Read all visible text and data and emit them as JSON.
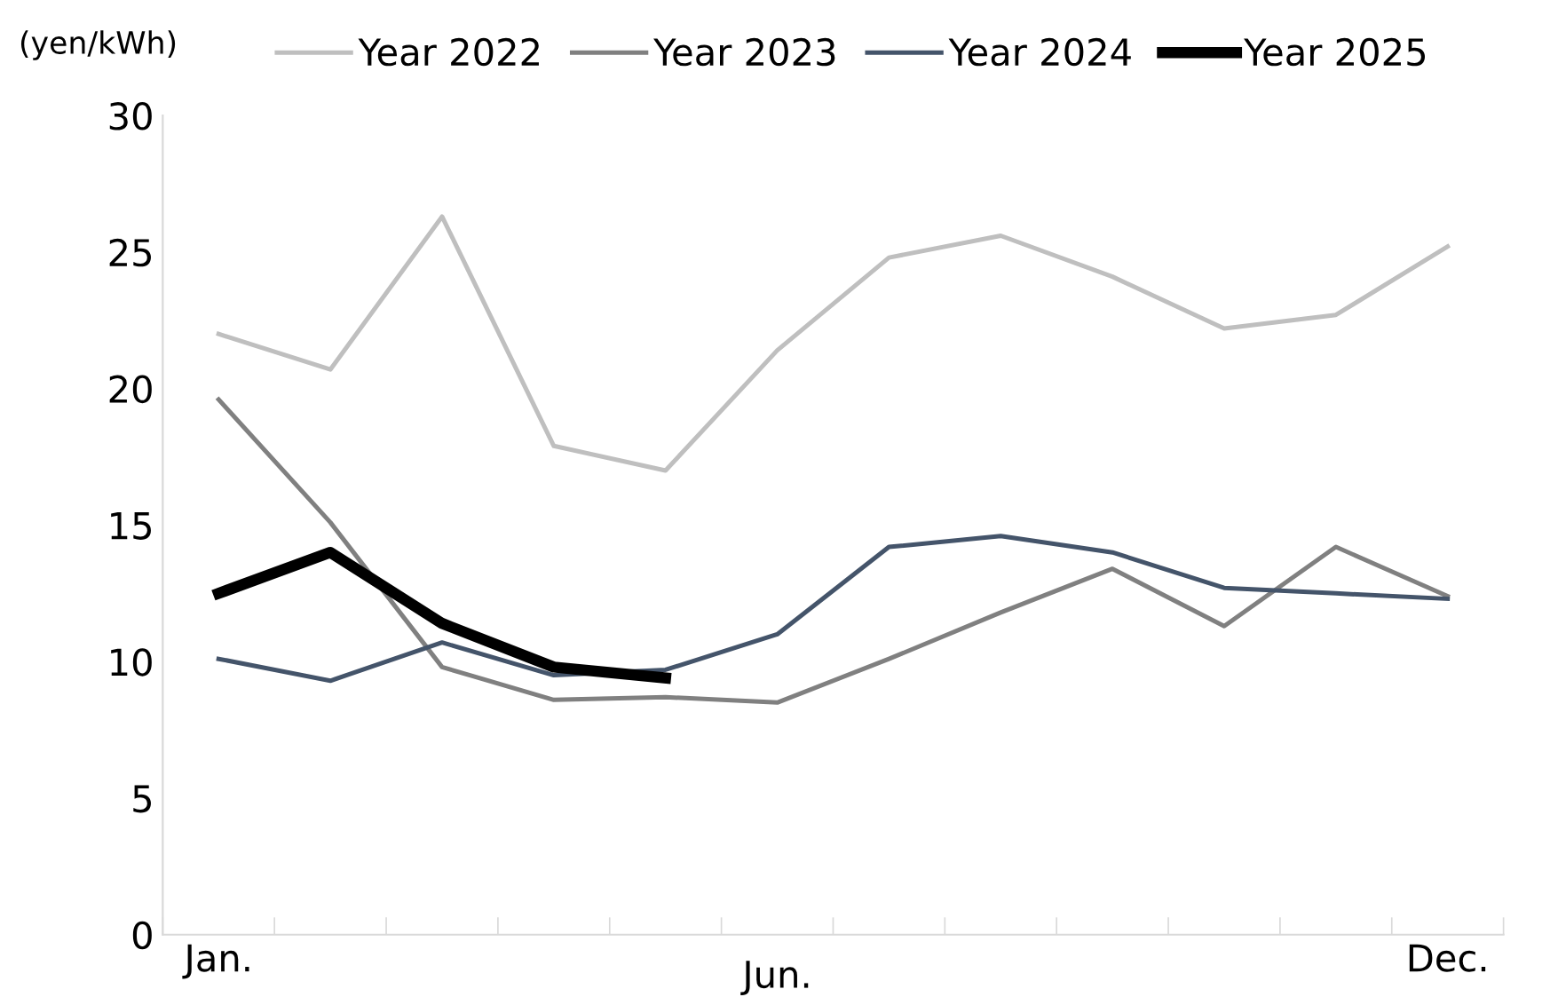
{
  "chart_data": {
    "type": "line",
    "ylabel": "(yen/kWh)",
    "categories": [
      "Jan.",
      null,
      null,
      null,
      null,
      "Jun.",
      null,
      null,
      null,
      null,
      null,
      "Dec."
    ],
    "series": [
      {
        "name": "Year 2022",
        "color": "#bfbfbf",
        "values": [
          22.0,
          20.7,
          26.3,
          17.9,
          17.0,
          21.4,
          24.8,
          25.6,
          24.1,
          22.2,
          22.7,
          25.2
        ]
      },
      {
        "name": "Year 2023",
        "color": "#808080",
        "values": [
          19.6,
          15.1,
          9.8,
          8.6,
          8.7,
          8.5,
          10.1,
          11.8,
          13.4,
          11.3,
          14.2,
          12.4
        ]
      },
      {
        "name": "Year 2024",
        "color": "#44546a",
        "values": [
          10.1,
          9.3,
          10.7,
          9.5,
          9.7,
          11.0,
          14.2,
          14.6,
          14.0,
          12.7,
          12.5,
          12.3
        ]
      },
      {
        "name": "Year 2025",
        "color": "#000000",
        "values": [
          12.5,
          14.0,
          11.4,
          9.8,
          9.4,
          null,
          null,
          null,
          null,
          null,
          null,
          null
        ]
      }
    ],
    "ylim": [
      0,
      30
    ],
    "yticks": [
      0,
      5,
      10,
      15,
      20,
      25,
      30
    ],
    "grid": false,
    "legend": "top",
    "marker": "none",
    "line_style": "solid"
  }
}
